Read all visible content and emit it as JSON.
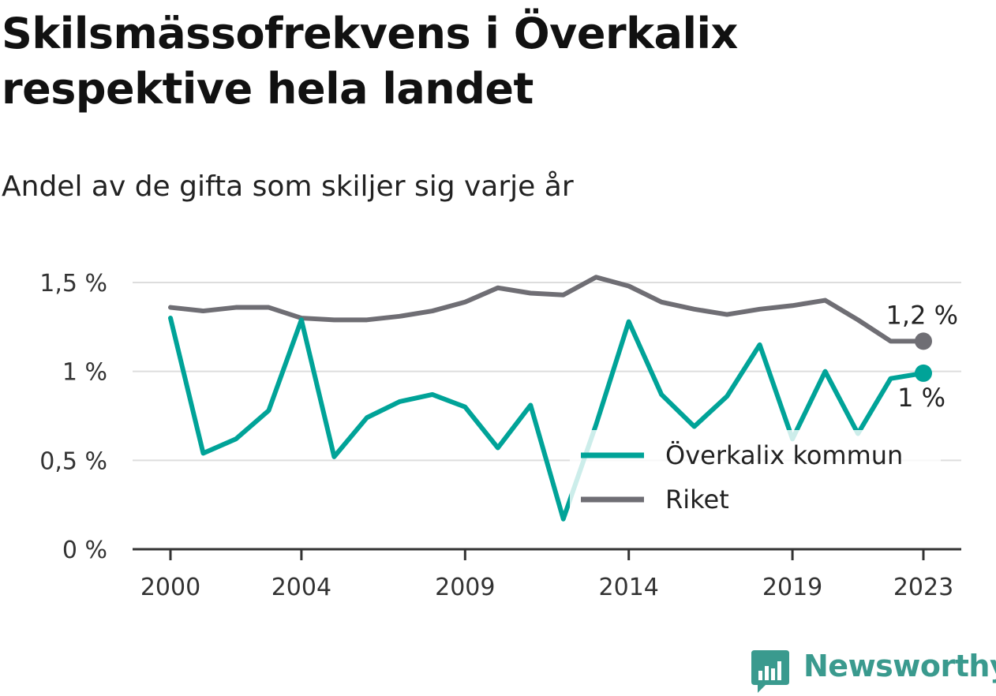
{
  "title": "Skilsmässofrekvens i Överkalix respektive hela landet",
  "subtitle": "Andel av de gifta som skiljer sig varje år",
  "brand": "Newsworthy",
  "colors": {
    "overkalix": "#00a398",
    "riket": "#6f6e74",
    "grid": "#dddddd",
    "axis": "#333333",
    "brand": "#3a9a8e"
  },
  "chart_data": {
    "type": "line",
    "x": [
      2000,
      2001,
      2002,
      2003,
      2004,
      2005,
      2006,
      2007,
      2008,
      2009,
      2010,
      2011,
      2012,
      2013,
      2014,
      2015,
      2016,
      2017,
      2018,
      2019,
      2020,
      2021,
      2022,
      2023
    ],
    "series": [
      {
        "name": "Överkalix kommun",
        "color": "#00a398",
        "values": [
          1.3,
          0.54,
          0.62,
          0.78,
          1.29,
          0.52,
          0.74,
          0.83,
          0.87,
          0.8,
          0.57,
          0.81,
          0.17,
          0.7,
          1.28,
          0.87,
          0.69,
          0.86,
          1.15,
          0.62,
          1.0,
          0.65,
          0.96,
          0.99
        ],
        "end_label": "1 %"
      },
      {
        "name": "Riket",
        "color": "#6f6e74",
        "values": [
          1.36,
          1.34,
          1.36,
          1.36,
          1.3,
          1.29,
          1.29,
          1.31,
          1.34,
          1.39,
          1.47,
          1.44,
          1.43,
          1.53,
          1.48,
          1.39,
          1.35,
          1.32,
          1.35,
          1.37,
          1.4,
          1.29,
          1.17,
          1.17
        ],
        "end_label": "1,2 %"
      }
    ],
    "ylim": [
      0,
      1.5
    ],
    "yticks": [
      0,
      0.5,
      1,
      1.5
    ],
    "ytick_labels": [
      "0 %",
      "0,5 %",
      "1 %",
      "1,5 %"
    ],
    "xticks": [
      2000,
      2004,
      2009,
      2014,
      2019,
      2023
    ],
    "xtick_labels": [
      "2000",
      "2004",
      "2009",
      "2014",
      "2019",
      "2023"
    ],
    "grid": true,
    "legend_position": "lower-right",
    "xlabel": "",
    "ylabel": ""
  }
}
